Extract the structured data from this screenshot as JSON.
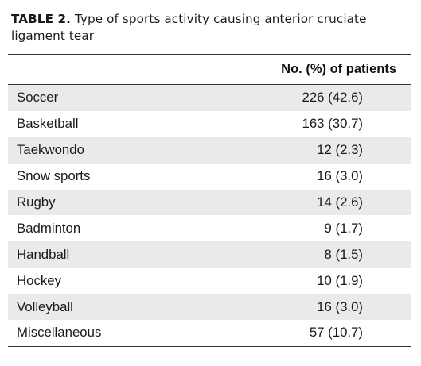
{
  "table": {
    "label": "TABLE 2.",
    "title": " Type of sports activity causing anterior cruciate ligament tear",
    "column_header": "No. (%) of patients",
    "rows": [
      {
        "sport": "Soccer",
        "value": "226 (42.6)"
      },
      {
        "sport": "Basketball",
        "value": "163 (30.7)"
      },
      {
        "sport": "Taekwondo",
        "value": "12 (2.3)"
      },
      {
        "sport": "Snow sports",
        "value": "16 (3.0)"
      },
      {
        "sport": "Rugby",
        "value": "14 (2.6)"
      },
      {
        "sport": "Badminton",
        "value": "9 (1.7)"
      },
      {
        "sport": "Handball",
        "value": "8 (1.5)"
      },
      {
        "sport": "Hockey",
        "value": "10 (1.9)"
      },
      {
        "sport": "Volleyball",
        "value": "16 (3.0)"
      },
      {
        "sport": "Miscellaneous",
        "value": "57 (10.7)"
      }
    ],
    "shade_color": "#e9eaeb"
  }
}
